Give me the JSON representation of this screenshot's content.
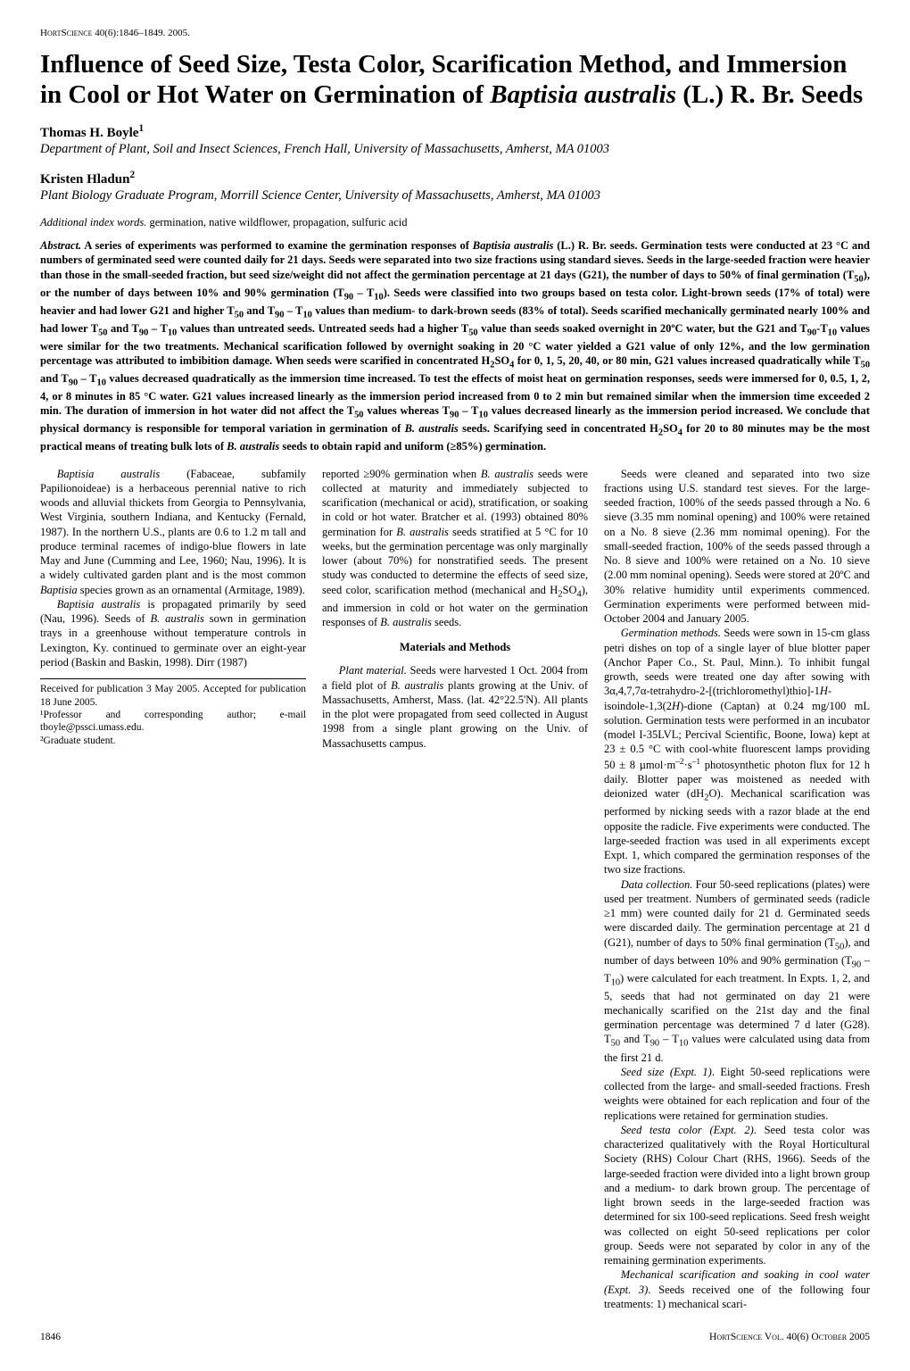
{
  "header": {
    "journal_caps_a": "H",
    "journal_rest_a": "ort",
    "journal_caps_b": "S",
    "journal_rest_b": "cience",
    "citation": " 40(6):1846–1849. 2005."
  },
  "title": "Influence of Seed Size, Testa Color, Scarification Method, and Immersion in Cool or Hot Water on Germination of Baptisia australis (L.) R. Br. Seeds",
  "authors": [
    {
      "name": "Thomas H. Boyle",
      "super": "1",
      "affiliation": "Department of Plant, Soil and Insect Sciences, French Hall, University of Massachusetts, Amherst, MA 01003"
    },
    {
      "name": "Kristen Hladun",
      "super": "2",
      "affiliation": "Plant Biology Graduate Program, Morrill Science Center, University of Massachusetts, Amherst, MA 01003"
    }
  ],
  "index_words": {
    "label": "Additional index words.",
    "text": " germination, native wildflower, propagation, sulfuric acid"
  },
  "abstract": "Abstract. A series of experiments was performed to examine the germination responses of Baptisia australis (L.) R. Br. seeds. Germination tests were conducted at 23 °C and numbers of germinated seed were counted daily for 21 days. Seeds were separated into two size fractions using standard sieves. Seeds in the large-seeded fraction were heavier than those in the small-seeded fraction, but seed size/weight did not affect the germination percentage at 21 days (G21), the number of days to 50% of final germination (T₅₀), or the number of days between 10% and 90% germination (T₉₀ – T₁₀). Seeds were classified into two groups based on testa color. Light-brown seeds (17% of total) were heavier and had lower G21 and higher T₅₀ and T₉₀ – T₁₀ values than medium- to dark-brown seeds (83% of total). Seeds scarified mechanically germinated nearly 100% and had lower T₅₀ and T₉₀ – T₁₀ values than untreated seeds. Untreated seeds had a higher T₅₀ value than seeds soaked overnight in 20ºC water, but the G21 and T₉₀-T₁₀ values were similar for the two treatments. Mechanical scarification followed by overnight soaking in 20 °C water yielded a G21 value of only 12%, and the low germination percentage was attributed to imbibition damage. When seeds were scarified in concentrated H₂SO₄ for 0, 1, 5, 20, 40, or 80 min, G21 values increased quadratically while T₅₀ and T₉₀ – T₁₀ values decreased quadratically as the immersion time increased. To test the effects of moist heat on germination responses, seeds were immersed for 0, 0.5, 1, 2, 4, or 8 minutes in 85 °C water. G21 values increased linearly as the immersion period increased from 0 to 2 min but remained similar when the immersion time exceeded 2 min. The duration of immersion in hot water did not affect the T₅₀ values whereas T₉₀ – T₁₀ values decreased linearly as the immersion period increased. We conclude that physical dormancy is responsible for temporal variation in germination of B. australis seeds. Scarifying seed in concentrated H₂SO₄ for 20 to 80 minutes may be the most practical means of treating bulk lots of B. australis seeds to obtain rapid and uniform (≥85%) germination.",
  "body": {
    "p1": "Baptisia australis (Fabaceae, subfamily Papilionoideae) is a herbaceous perennial native to rich woods and alluvial thickets from Georgia to Pennsylvania, West Virginia, southern Indiana, and Kentucky (Fernald, 1987). In the northern U.S., plants are 0.6 to 1.2 m tall and produce terminal racemes of indigo-blue flowers in late May and June (Cumming and Lee, 1960; Nau, 1996). It is a widely cultivated garden plant and is the most common Baptisia species grown as an ornamental (Armitage, 1989).",
    "p2": "Baptisia australis is propagated primarily by seed (Nau, 1996). Seeds of B. australis sown in germination trays in a greenhouse without temperature controls in Lexington, Ky. continued to germinate over an eight-year period (Baskin and Baskin, 1998). Dirr (1987)",
    "p3": "reported ≥90% germination when B. australis seeds were collected at maturity and immediately subjected to scarification (mechanical or acid), stratification, or soaking in cold or hot water. Bratcher et al. (1993) obtained 80% germination for B. australis seeds stratified at 5 °C for 10 weeks, but the germination percentage was only marginally lower (about 70%) for nonstratified seeds. The present study was conducted to determine the effects of seed size, seed color, scarification method (mechanical and H₂SO₄), and immersion in cold or hot water on the germination responses of B. australis seeds.",
    "mm_head": "Materials and Methods",
    "p4": "Plant material. Seeds were harvested 1 Oct. 2004 from a field plot of B. australis plants growing at the Univ. of Massachusetts, Amherst, Mass. (lat. 42°22.5'N). All plants in the plot were propagated from seed collected in August 1998 from a single plant growing on the Univ. of Massachusetts campus.",
    "p5": "Seeds were cleaned and separated into two size fractions using U.S. standard test sieves. For the large-seeded fraction, 100% of the seeds passed through a No. 6 sieve (3.35 mm nominal opening) and 100% were retained on a No. 8 sieve (2.36 mm nomimal opening). For the small-seeded fraction, 100% of the seeds passed through a No. 8 sieve and 100% were retained on a No. 10 sieve (2.00 mm nominal opening). Seeds were stored at 20ºC and 30% relative humidity until experiments commenced. Germination experiments were performed between mid-October 2004 and January 2005.",
    "p6": "Germination methods. Seeds were sown in 15-cm glass petri dishes on top of a single layer of blue blotter paper (Anchor Paper Co., St. Paul, Minn.). To inhibit fungal growth, seeds were treated one day after sowing with 3α,4,7,7α-tetrahydro-2-[(trichloromethyl)thio]-1H-isoindole-1,3(2H)-dione (Captan) at 0.24 mg/100 mL solution. Germination tests were performed in an incubator (model I-35LVL; Percival Scientific, Boone, Iowa) kept at 23 ± 0.5 °C with cool-white fluorescent lamps providing 50 ± 8 µmol·m⁻²·s⁻¹ photosynthetic photon flux for 12 h daily. Blotter paper was moistened as needed with deionized water (dH₂O). Mechanical scarification was performed by nicking seeds with a razor blade at the end opposite the radicle. Five experiments were conducted. The large-seeded fraction was used in all experiments except Expt. 1, which compared the germination responses of the two size fractions.",
    "p7": "Data collection. Four 50-seed replications (plates) were used per treatment. Numbers of germinated seeds (radicle ≥1 mm) were counted daily for 21 d. Germinated seeds were discarded daily. The germination percentage at 21 d (G21), number of days to 50% final germination (T₅₀), and number of days between 10% and 90% germination (T₉₀ – T₁₀) were calculated for each treatment. In Expts. 1, 2, and 5, seeds that had not germinated on day 21 were mechanically scarified on the 21st day and the final germination percentage was determined 7 d later (G28). T₅₀ and T₉₀ – T₁₀ values were calculated using data from the first 21 d.",
    "p8": "Seed size (Expt. 1). Eight 50-seed replications were collected from the large- and small-seeded fractions. Fresh weights were obtained for each replication and four of the replications were retained for germination studies.",
    "p9": "Seed testa color (Expt. 2). Seed testa color was characterized qualitatively with the Royal Horticultural Society (RHS) Colour Chart (RHS, 1966). Seeds of the large-seeded fraction were divided into a light brown group and a medium- to dark brown group. The percentage of light brown seeds in the large-seeded fraction was determined for six 100-seed replications. Seed fresh weight was collected on eight 50-seed replications per color group. Seeds were not separated by color in any of the remaining germination experiments.",
    "p10": "Mechanical scarification and soaking in cool water (Expt. 3). Seeds received one of the following four treatments: 1) mechanical scari-"
  },
  "footnotes": {
    "f1": "Received for publication 3 May 2005. Accepted for publication 18 June 2005.",
    "f2": "¹Professor and corresponding author; e-mail tboyle@pssci.umass.edu.",
    "f3": "²Graduate student."
  },
  "footer": {
    "page": "1846",
    "journal_caps_a": "H",
    "journal_rest_a": "ort",
    "journal_caps_b": "S",
    "journal_rest_b": "cience",
    "vol_caps": " V",
    "vol_rest": "ol",
    "issue": ". 40(6) ",
    "month_caps": "O",
    "month_rest": "ctober",
    "year": " 2005"
  }
}
